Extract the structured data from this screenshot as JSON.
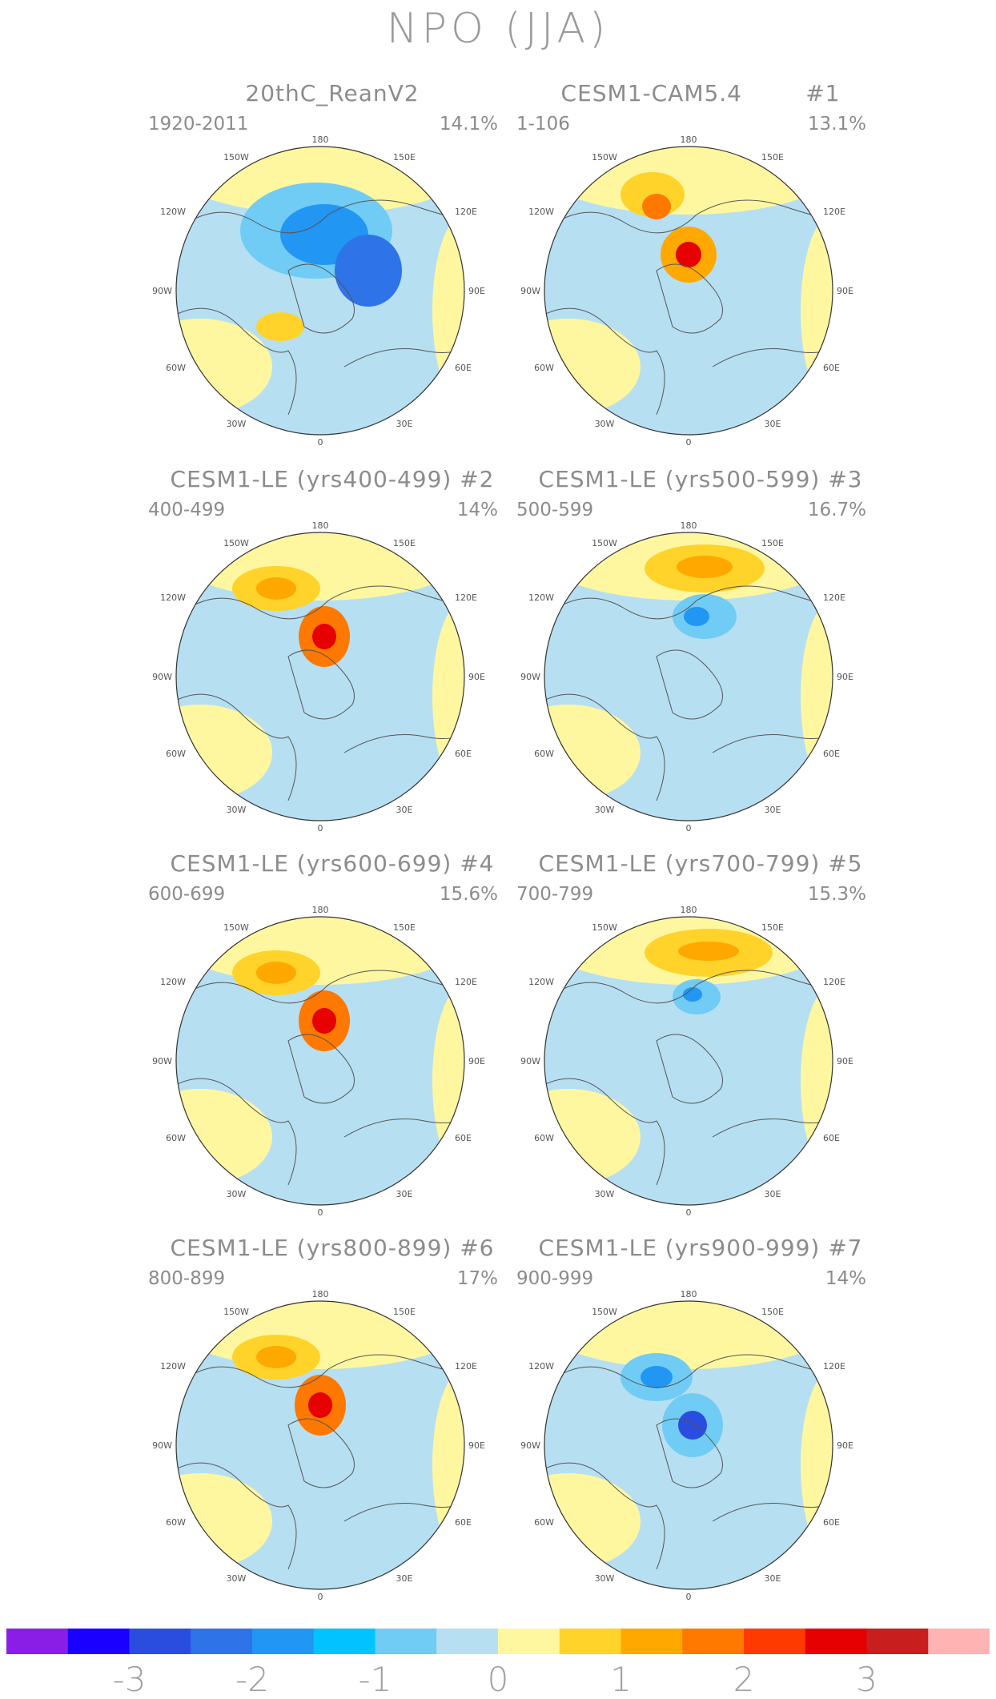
{
  "title": "NPO (JJA)",
  "colors": {
    "ocean_light_blue": "#b7dff2",
    "land_light_yellow": "#fff7a0",
    "coast": "#555555"
  },
  "panels": [
    {
      "title": "20thC_ReanV2",
      "period": "1920-2011",
      "percent": "14.1%"
    },
    {
      "title": "CESM1-CAM5.4        #1",
      "period": "1-106",
      "percent": "13.1%"
    },
    {
      "title": "CESM1-LE (yrs400-499) #2",
      "period": "400-499",
      "percent": "14%"
    },
    {
      "title": "CESM1-LE (yrs500-599) #3",
      "period": "500-599",
      "percent": "16.7%"
    },
    {
      "title": "CESM1-LE (yrs600-699) #4",
      "period": "600-699",
      "percent": "15.6%"
    },
    {
      "title": "CESM1-LE (yrs700-799) #5",
      "period": "700-799",
      "percent": "15.3%"
    },
    {
      "title": "CESM1-LE (yrs800-899) #6",
      "period": "800-899",
      "percent": "17%"
    },
    {
      "title": "CESM1-LE (yrs900-999) #7",
      "period": "900-999",
      "percent": "14%"
    }
  ],
  "map_labels": {
    "top": "180",
    "top_left": "150W",
    "top_right": "150E",
    "upper_left": "120W",
    "upper_right": "120E",
    "left": "90W",
    "right": "90E",
    "lower_left": "60W",
    "lower_right": "60E",
    "bottom_left": "30W",
    "bottom_right": "30E",
    "bottom": "0"
  },
  "colorbar": {
    "colors": [
      "#8a1ee6",
      "#1a00ff",
      "#2a4de0",
      "#2f73e8",
      "#2196f3",
      "#00c3ff",
      "#70ccf4",
      "#b7dff2",
      "#fff7a0",
      "#ffd32a",
      "#ffa800",
      "#ff7800",
      "#ff3a00",
      "#e60000",
      "#c81e1e",
      "#ffb3b3"
    ],
    "labels": [
      "-3",
      "-2",
      "-1",
      "0",
      "1",
      "2",
      "3"
    ]
  }
}
